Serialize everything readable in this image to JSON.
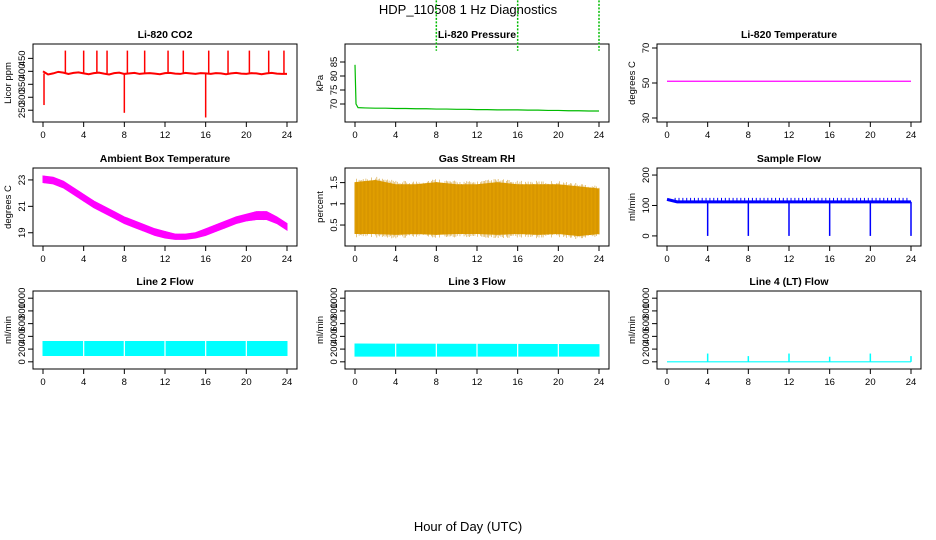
{
  "figure": {
    "title": "HDP_110508  1 Hz Diagnostics",
    "xlabel": "Hour of Day (UTC)"
  },
  "chart_data": [
    {
      "type": "line",
      "title": "Li-820 CO2",
      "xlabel": "",
      "ylabel": "Licor ppm",
      "xlim": [
        0,
        24
      ],
      "ylim": [
        220,
        490
      ],
      "xticks": [
        0,
        4,
        8,
        12,
        16,
        20,
        24
      ],
      "yticks": [
        250,
        300,
        350,
        400,
        450
      ],
      "grid": false,
      "color": "#ff0000",
      "series": [
        {
          "x": [
            0,
            0.2,
            0.5,
            1,
            1.5,
            2,
            2.5,
            3,
            3.5,
            4,
            4.5,
            5,
            5.5,
            6,
            6.5,
            7,
            7.5,
            8,
            8.5,
            9,
            9.5,
            10,
            10.5,
            11,
            11.5,
            12,
            12.5,
            13,
            13.5,
            14,
            14.5,
            15,
            15.5,
            16,
            16.5,
            17,
            17.5,
            18,
            18.5,
            19,
            19.5,
            20,
            20.5,
            21,
            21.5,
            22,
            22.5,
            23,
            23.5,
            24
          ],
          "y": [
            400,
            395,
            388,
            392,
            398,
            395,
            390,
            394,
            396,
            392,
            389,
            393,
            395,
            391,
            388,
            393,
            395,
            390,
            392,
            394,
            390,
            392,
            393,
            391,
            389,
            393,
            394,
            391,
            390,
            394,
            392,
            390,
            393,
            392,
            390,
            393,
            392,
            389,
            392,
            394,
            391,
            390,
            393,
            392,
            389,
            392,
            394,
            391,
            390,
            390
          ]
        }
      ],
      "spikes_up": [
        2.2,
        4,
        5.3,
        6.3,
        8.3,
        10,
        12.3,
        13.8,
        16.3,
        18.2,
        20.3,
        22.2,
        23.7
      ],
      "spike_up_value": 480,
      "spikes_down": [
        {
          "x": 0.1,
          "y": 270
        },
        {
          "x": 8,
          "y": 240
        },
        {
          "x": 16,
          "y": 222
        }
      ]
    },
    {
      "type": "line",
      "title": "Li-820 Pressure",
      "xlabel": "",
      "ylabel": "kPa",
      "xlim": [
        0,
        24
      ],
      "ylim": [
        65,
        90
      ],
      "xticks": [
        0,
        4,
        8,
        12,
        16,
        20,
        24
      ],
      "yticks": [
        70,
        75,
        80,
        85
      ],
      "grid": false,
      "color": "#00bb00",
      "series": [
        {
          "x": [
            0,
            0.1,
            0.3,
            1,
            2,
            3,
            4,
            5,
            6,
            7,
            8,
            9,
            10,
            11,
            12,
            13,
            14,
            15,
            16,
            17,
            18,
            19,
            20,
            21,
            22,
            23,
            24
          ],
          "y": [
            84,
            70,
            68.7,
            68.6,
            68.5,
            68.5,
            68.4,
            68.4,
            68.3,
            68.3,
            68.2,
            68.2,
            68.1,
            68.1,
            68.0,
            68.0,
            67.9,
            67.9,
            67.9,
            67.8,
            67.8,
            67.7,
            67.7,
            67.6,
            67.6,
            67.5,
            67.5
          ]
        }
      ],
      "spikes_up": [
        8,
        16,
        24
      ],
      "spike_up_value": 89
    },
    {
      "type": "line",
      "title": "Li-820 Temperature",
      "xlabel": "",
      "ylabel": "degrees C",
      "xlim": [
        0,
        24
      ],
      "ylim": [
        30,
        70
      ],
      "xticks": [
        0,
        4,
        8,
        12,
        16,
        20,
        24
      ],
      "yticks": [
        30,
        50,
        70
      ],
      "grid": false,
      "color": "#ff00ff",
      "series": [
        {
          "x": [
            0,
            24
          ],
          "y": [
            51,
            51
          ]
        }
      ]
    },
    {
      "type": "area",
      "title": "Ambient Box Temperature",
      "xlabel": "",
      "ylabel": "degrees C",
      "xlim": [
        0,
        24
      ],
      "ylim": [
        18.3,
        23.6
      ],
      "xticks": [
        0,
        4,
        8,
        12,
        16,
        20,
        24
      ],
      "yticks": [
        19,
        21,
        23
      ],
      "grid": false,
      "color": "#ff00ff",
      "series": [
        {
          "x": [
            0,
            1,
            2,
            3,
            4,
            5,
            6,
            7,
            8,
            9,
            10,
            11,
            12,
            13,
            14,
            15,
            16,
            17,
            18,
            19,
            20,
            21,
            22,
            23,
            24
          ],
          "high": [
            23.3,
            23.2,
            22.9,
            22.4,
            21.9,
            21.4,
            21.0,
            20.6,
            20.2,
            19.9,
            19.6,
            19.3,
            19.1,
            18.9,
            18.9,
            19.0,
            19.3,
            19.6,
            19.9,
            20.2,
            20.4,
            20.6,
            20.6,
            20.2,
            19.7
          ],
          "low": [
            22.8,
            22.7,
            22.4,
            21.9,
            21.4,
            20.9,
            20.5,
            20.1,
            19.7,
            19.4,
            19.1,
            18.8,
            18.6,
            18.5,
            18.5,
            18.6,
            18.8,
            19.1,
            19.4,
            19.7,
            19.9,
            20.0,
            20.0,
            19.7,
            19.2
          ]
        }
      ]
    },
    {
      "type": "area",
      "title": "Gas Stream RH",
      "xlabel": "",
      "ylabel": "percent",
      "xlim": [
        0,
        24
      ],
      "ylim": [
        0.1,
        1.75
      ],
      "xticks": [
        0,
        4,
        8,
        12,
        16,
        20,
        24
      ],
      "yticks": [
        0.5,
        1.0,
        1.5
      ],
      "grid": false,
      "color": "#e6a300",
      "series": [
        {
          "x": [
            0,
            2,
            4,
            6,
            8,
            10,
            12,
            14,
            16,
            18,
            20,
            22,
            24
          ],
          "high": [
            1.5,
            1.55,
            1.45,
            1.45,
            1.5,
            1.45,
            1.45,
            1.5,
            1.45,
            1.45,
            1.45,
            1.4,
            1.35
          ],
          "low": [
            0.3,
            0.3,
            0.28,
            0.3,
            0.28,
            0.3,
            0.3,
            0.28,
            0.3,
            0.28,
            0.3,
            0.25,
            0.3
          ]
        }
      ]
    },
    {
      "type": "line",
      "title": "Sample Flow",
      "xlabel": "",
      "ylabel": "ml/min",
      "xlim": [
        0,
        24
      ],
      "ylim": [
        -20,
        210
      ],
      "xticks": [
        0,
        4,
        8,
        12,
        16,
        20,
        24
      ],
      "yticks": [
        0,
        100,
        200
      ],
      "grid": false,
      "color": "#0000ff",
      "series": [
        {
          "x": [
            0,
            1,
            2,
            3,
            4,
            5,
            6,
            7,
            8,
            9,
            10,
            11,
            12,
            13,
            14,
            15,
            16,
            17,
            18,
            19,
            20,
            21,
            22,
            23,
            24
          ],
          "y": [
            120,
            112,
            112,
            112,
            112,
            112,
            112,
            112,
            112,
            112,
            112,
            112,
            112,
            112,
            112,
            112,
            112,
            112,
            112,
            112,
            112,
            112,
            112,
            112,
            112
          ]
        }
      ],
      "spikes_down": [
        {
          "x": 4,
          "y": 0
        },
        {
          "x": 8,
          "y": 0
        },
        {
          "x": 12,
          "y": 0
        },
        {
          "x": 16,
          "y": 0
        },
        {
          "x": 20,
          "y": 0
        },
        {
          "x": 24,
          "y": 0
        }
      ],
      "band_top": 125
    },
    {
      "type": "area",
      "title": "Line 2 Flow",
      "xlabel": "",
      "ylabel": "ml/min",
      "xlim": [
        0,
        24
      ],
      "ylim": [
        -50,
        1050
      ],
      "xticks": [
        0,
        4,
        8,
        12,
        16,
        20,
        24
      ],
      "yticks": [
        0,
        200,
        400,
        600,
        800,
        1000
      ],
      "grid": false,
      "color": "#00ffff",
      "series": [
        {
          "x": [
            0,
            24
          ],
          "high": [
            320,
            320
          ],
          "low": [
            100,
            100
          ]
        }
      ],
      "gaps": [
        4,
        8,
        12,
        16,
        20
      ]
    },
    {
      "type": "area",
      "title": "Line 3 Flow",
      "xlabel": "",
      "ylabel": "ml/min",
      "xlim": [
        0,
        24
      ],
      "ylim": [
        -50,
        1050
      ],
      "xticks": [
        0,
        4,
        8,
        12,
        16,
        20,
        24
      ],
      "yticks": [
        0,
        200,
        400,
        600,
        800,
        1000
      ],
      "grid": false,
      "color": "#00ffff",
      "series": [
        {
          "x": [
            0,
            24
          ],
          "high": [
            280,
            270
          ],
          "low": [
            90,
            90
          ]
        }
      ],
      "gaps": [
        4,
        8,
        12,
        16,
        20
      ]
    },
    {
      "type": "line",
      "title": "Line 4 (LT) Flow",
      "xlabel": "",
      "ylabel": "ml/min",
      "xlim": [
        0,
        24
      ],
      "ylim": [
        -50,
        1050
      ],
      "xticks": [
        0,
        4,
        8,
        12,
        16,
        20,
        24
      ],
      "yticks": [
        0,
        200,
        400,
        600,
        800,
        1000
      ],
      "grid": false,
      "color": "#00ffff",
      "series": [
        {
          "x": [
            0,
            24
          ],
          "y": [
            0,
            0
          ]
        }
      ],
      "spikes_up_list": [
        {
          "x": 4,
          "y": 130
        },
        {
          "x": 8,
          "y": 90
        },
        {
          "x": 12,
          "y": 130
        },
        {
          "x": 16,
          "y": 80
        },
        {
          "x": 20,
          "y": 130
        },
        {
          "x": 24,
          "y": 90
        }
      ]
    }
  ]
}
